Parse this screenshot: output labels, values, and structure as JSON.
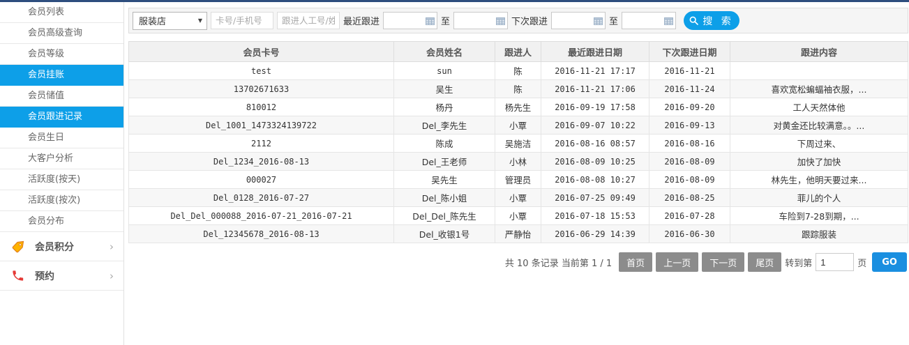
{
  "sidebar": {
    "items": [
      {
        "label": "会员列表",
        "active": false
      },
      {
        "label": "会员高级查询",
        "active": false
      },
      {
        "label": "会员等级",
        "active": false
      },
      {
        "label": "会员挂账",
        "active": true
      },
      {
        "label": "会员储值",
        "active": false
      },
      {
        "label": "会员跟进记录",
        "active": true
      },
      {
        "label": "会员生日",
        "active": false
      },
      {
        "label": "大客户分析",
        "active": false
      },
      {
        "label": "活跃度(按天)",
        "active": false
      },
      {
        "label": "活跃度(按次)",
        "active": false
      },
      {
        "label": "会员分布",
        "active": false
      }
    ],
    "groups": [
      {
        "label": "会员积分",
        "icon": "tag-icon",
        "chevron": "›"
      },
      {
        "label": "预约",
        "icon": "phone-icon",
        "chevron": "›"
      }
    ]
  },
  "search": {
    "store_select_value": "服装店",
    "card_placeholder": "卡号/手机号",
    "follower_placeholder": "跟进人工号/姓名",
    "recent_follow_label": "最近跟进",
    "to_label_1": "至",
    "next_follow_label": "下次跟进",
    "to_label_2": "至",
    "date_values": {
      "recent_from": "",
      "recent_to": "",
      "next_from": "",
      "next_to": ""
    },
    "search_button_label": "搜 索"
  },
  "table": {
    "columns": [
      "会员卡号",
      "会员姓名",
      "跟进人",
      "最近跟进日期",
      "下次跟进日期",
      "跟进内容"
    ],
    "rows": [
      [
        "test",
        "sun",
        "陈",
        "2016-11-21 17:17",
        "2016-11-21",
        ""
      ],
      [
        "13702671633",
        "吴生",
        "陈",
        "2016-11-21 17:06",
        "2016-11-24",
        "喜欢宽松蝙蝠袖衣服，..."
      ],
      [
        "810012",
        "杨丹",
        "杨先生",
        "2016-09-19 17:58",
        "2016-09-20",
        "工人天然体他"
      ],
      [
        "Del_1001_1473324139722",
        "Del_李先生",
        "小覃",
        "2016-09-07 10:22",
        "2016-09-13",
        "对黄金还比较满意。。..."
      ],
      [
        "2112",
        "陈成",
        "吴施洁",
        "2016-08-16 08:57",
        "2016-08-16",
        "下周过来、"
      ],
      [
        "Del_1234_2016-08-13",
        "Del_王老师",
        "小林",
        "2016-08-09 10:25",
        "2016-08-09",
        "加快了加快"
      ],
      [
        "000027",
        "吴先生",
        "管理员",
        "2016-08-08 10:27",
        "2016-08-09",
        "林先生，他明天要过来..."
      ],
      [
        "Del_0128_2016-07-27",
        "Del_陈小姐",
        "小覃",
        "2016-07-25 09:49",
        "2016-08-25",
        "菲儿的个人"
      ],
      [
        "Del_Del_000088_2016-07-21_2016-07-21",
        "Del_Del_陈先生",
        "小覃",
        "2016-07-18 15:53",
        "2016-07-28",
        "车险到7-28到期，..."
      ],
      [
        "Del_12345678_2016-08-13",
        "Del_收银1号",
        "严静怡",
        "2016-06-29 14:39",
        "2016-06-30",
        "跟踪服装"
      ]
    ]
  },
  "pagination": {
    "summary": "共 10 条记录 当前第 1 / 1",
    "first_label": "首页",
    "prev_label": "上一页",
    "next_label": "下一页",
    "last_label": "尾页",
    "goto_label": "转到第",
    "goto_value": "1",
    "page_label": "页",
    "go_label": "GO"
  },
  "colors": {
    "accent_blue": "#0d9fe8",
    "topbar_navy": "#2e4e7e",
    "pager_gray": "#8c8c8c",
    "go_blue": "#1a8fe0",
    "tag_icon_orange": "#f5a623",
    "phone_icon_red": "#e53935"
  }
}
